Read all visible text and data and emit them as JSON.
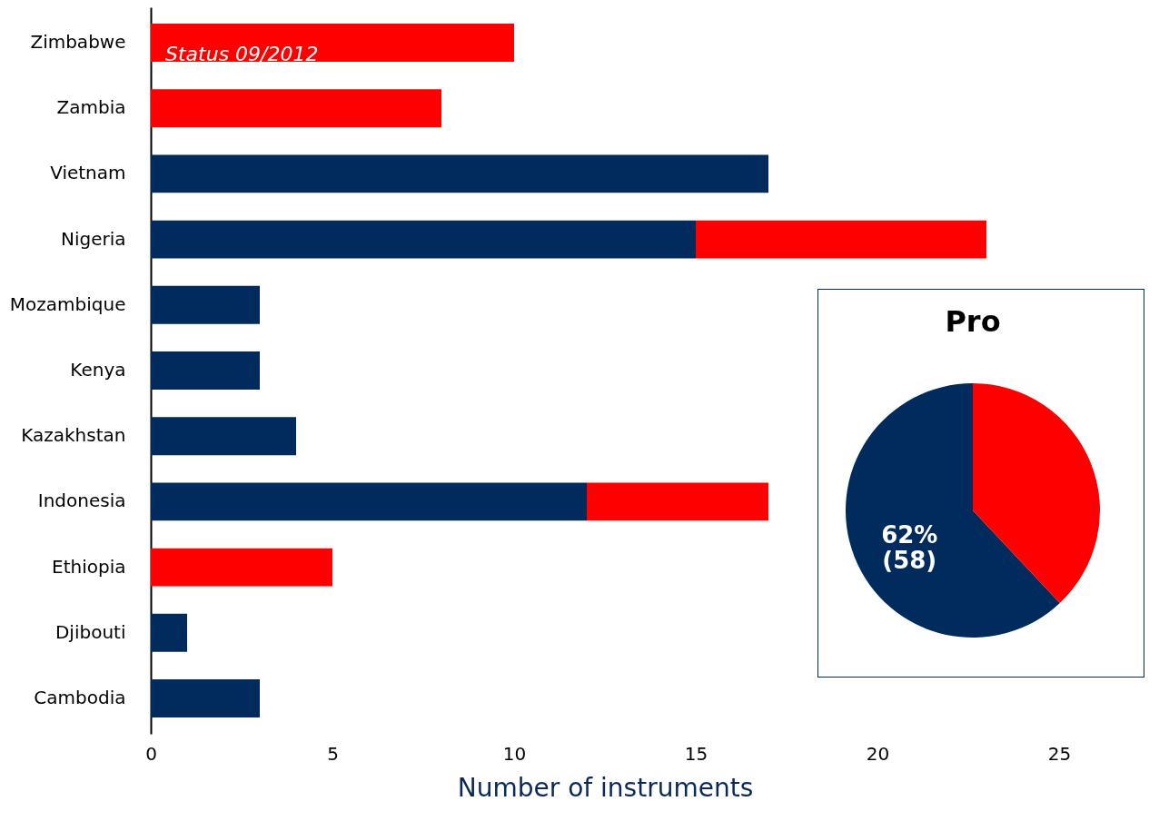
{
  "chart_data": [
    {
      "type": "bar",
      "orientation": "horizontal",
      "stacked": true,
      "xlabel": "Number of instruments",
      "categories": [
        "Zimbabwe",
        "Zambia",
        "Vietnam",
        "Nigeria",
        "Mozambique",
        "Kenya",
        "Kazakhstan",
        "Indonesia",
        "Ethiopia",
        "Djibouti",
        "Cambodia"
      ],
      "series": [
        {
          "color": "#002b5c",
          "values": [
            null,
            null,
            17,
            15,
            3,
            3,
            4,
            12,
            null,
            1,
            3
          ]
        },
        {
          "color": "#ff0000",
          "values": [
            10,
            8,
            null,
            8,
            null,
            null,
            null,
            5,
            5,
            null,
            null
          ]
        }
      ],
      "xlim": [
        0,
        25
      ],
      "xticks": [
        0,
        5,
        10,
        15,
        20,
        25
      ],
      "annotations": [
        "Status 09/2012"
      ]
    },
    {
      "type": "pie",
      "title": "Pro",
      "categories": [
        null,
        null
      ],
      "values": [
        62,
        38
      ],
      "colors": [
        "#002b5c",
        "#ff0000"
      ],
      "value_labels": [
        "62%\n(58)",
        null
      ]
    }
  ]
}
